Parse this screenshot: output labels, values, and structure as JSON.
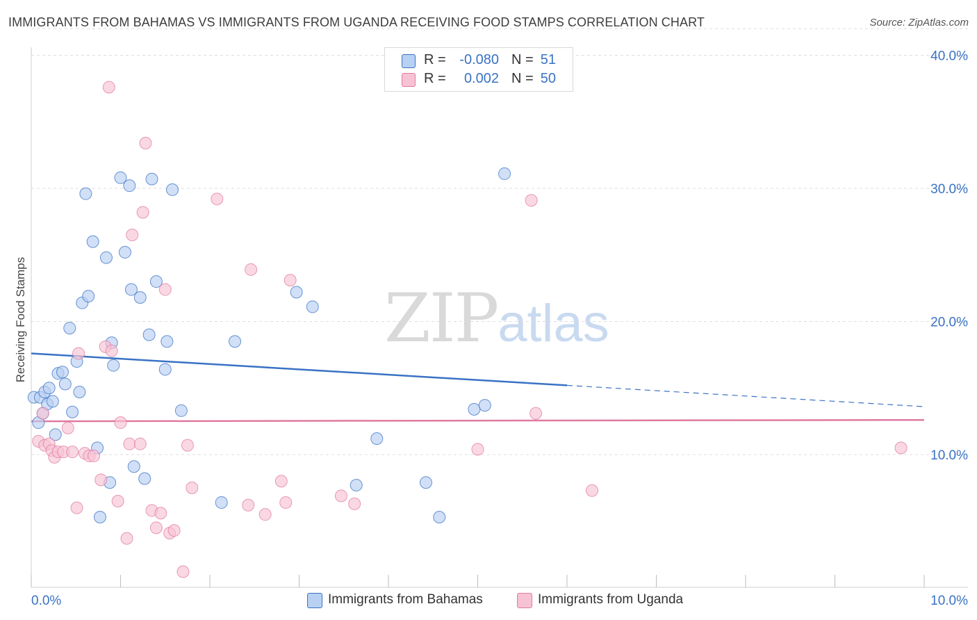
{
  "header": {
    "title": "IMMIGRANTS FROM BAHAMAS VS IMMIGRANTS FROM UGANDA RECEIVING FOOD STAMPS CORRELATION CHART",
    "source": "Source: ZipAtlas.com"
  },
  "legend_top": {
    "rows": [
      {
        "r_label": "R =",
        "r_value": "-0.080",
        "n_label": "N =",
        "n_value": "51"
      },
      {
        "r_label": "R =",
        "r_value": "0.002",
        "n_label": "N =",
        "n_value": "50"
      }
    ]
  },
  "watermark": {
    "zip": "ZIP",
    "atlas": "atlas"
  },
  "chart_data": {
    "type": "scatter",
    "title": "IMMIGRANTS FROM BAHAMAS VS IMMIGRANTS FROM UGANDA RECEIVING FOOD STAMPS CORRELATION CHART",
    "xlabel": "",
    "ylabel": "Receiving Food Stamps",
    "xlim": [
      0,
      10
    ],
    "ylim": [
      0,
      42
    ],
    "x_tick_labels": [
      "0.0%",
      "10.0%"
    ],
    "y_tick_labels": [
      "10.0%",
      "20.0%",
      "30.0%",
      "40.0%"
    ],
    "y_ticks": [
      10,
      20,
      30,
      40
    ],
    "grid": true,
    "legend_position": "bottom",
    "colors": {
      "bahamas": "#3a72c4",
      "uganda": "#e07aa0",
      "bahamas_fill": "#b8d0f2",
      "uganda_fill": "#f7c3d4"
    },
    "series": [
      {
        "name": "Immigrants from Bahamas",
        "trend": {
          "x": [
            0.0,
            6.0
          ],
          "y": [
            17.6,
            15.2
          ],
          "dashed_to": [
            10.0,
            13.6
          ]
        },
        "points": [
          [
            0.03,
            14.3
          ],
          [
            0.08,
            12.4
          ],
          [
            0.1,
            14.3
          ],
          [
            0.13,
            13.1
          ],
          [
            0.15,
            14.7
          ],
          [
            0.18,
            13.8
          ],
          [
            0.2,
            15.0
          ],
          [
            0.24,
            14.0
          ],
          [
            0.27,
            11.5
          ],
          [
            0.3,
            16.1
          ],
          [
            0.35,
            16.2
          ],
          [
            0.38,
            15.3
          ],
          [
            0.43,
            19.5
          ],
          [
            0.46,
            13.2
          ],
          [
            0.51,
            17.0
          ],
          [
            0.54,
            14.7
          ],
          [
            0.57,
            21.4
          ],
          [
            0.61,
            29.6
          ],
          [
            0.64,
            21.9
          ],
          [
            0.69,
            26.0
          ],
          [
            0.74,
            10.5
          ],
          [
            0.77,
            5.3
          ],
          [
            0.84,
            24.8
          ],
          [
            0.88,
            7.9
          ],
          [
            0.9,
            18.4
          ],
          [
            0.92,
            16.7
          ],
          [
            1.0,
            30.8
          ],
          [
            1.05,
            25.2
          ],
          [
            1.1,
            30.2
          ],
          [
            1.12,
            22.4
          ],
          [
            1.15,
            9.1
          ],
          [
            1.22,
            21.8
          ],
          [
            1.27,
            8.2
          ],
          [
            1.32,
            19.0
          ],
          [
            1.35,
            30.7
          ],
          [
            1.4,
            23.0
          ],
          [
            1.5,
            16.4
          ],
          [
            1.52,
            18.5
          ],
          [
            1.58,
            29.9
          ],
          [
            1.68,
            13.3
          ],
          [
            2.13,
            6.4
          ],
          [
            2.28,
            18.5
          ],
          [
            2.97,
            22.2
          ],
          [
            3.15,
            21.1
          ],
          [
            3.64,
            7.7
          ],
          [
            3.87,
            11.2
          ],
          [
            4.42,
            7.9
          ],
          [
            4.57,
            5.3
          ],
          [
            4.96,
            13.4
          ],
          [
            5.08,
            13.7
          ],
          [
            5.3,
            31.1
          ]
        ]
      },
      {
        "name": "Immigrants from Uganda",
        "trend": {
          "x": [
            0.0,
            10.0
          ],
          "y": [
            12.5,
            12.6
          ]
        },
        "points": [
          [
            0.08,
            11.0
          ],
          [
            0.13,
            13.1
          ],
          [
            0.15,
            10.7
          ],
          [
            0.2,
            10.8
          ],
          [
            0.23,
            10.3
          ],
          [
            0.26,
            9.8
          ],
          [
            0.3,
            10.2
          ],
          [
            0.36,
            10.2
          ],
          [
            0.41,
            12.0
          ],
          [
            0.46,
            10.2
          ],
          [
            0.51,
            6.0
          ],
          [
            0.53,
            17.6
          ],
          [
            0.6,
            10.1
          ],
          [
            0.65,
            9.9
          ],
          [
            0.7,
            9.9
          ],
          [
            0.78,
            8.1
          ],
          [
            0.83,
            18.1
          ],
          [
            0.87,
            37.6
          ],
          [
            0.9,
            17.8
          ],
          [
            0.97,
            6.5
          ],
          [
            1.0,
            12.4
          ],
          [
            1.07,
            3.7
          ],
          [
            1.1,
            10.8
          ],
          [
            1.13,
            26.5
          ],
          [
            1.22,
            10.8
          ],
          [
            1.25,
            28.2
          ],
          [
            1.28,
            33.4
          ],
          [
            1.35,
            5.8
          ],
          [
            1.4,
            4.5
          ],
          [
            1.45,
            5.6
          ],
          [
            1.5,
            22.4
          ],
          [
            1.55,
            4.1
          ],
          [
            1.6,
            4.3
          ],
          [
            1.7,
            1.2
          ],
          [
            1.75,
            10.7
          ],
          [
            1.8,
            7.5
          ],
          [
            2.08,
            29.2
          ],
          [
            2.43,
            6.2
          ],
          [
            2.46,
            23.9
          ],
          [
            2.62,
            5.5
          ],
          [
            2.8,
            8.0
          ],
          [
            2.85,
            6.4
          ],
          [
            2.9,
            23.1
          ],
          [
            3.47,
            6.9
          ],
          [
            3.62,
            6.3
          ],
          [
            5.0,
            10.4
          ],
          [
            5.6,
            29.1
          ],
          [
            5.65,
            13.1
          ],
          [
            6.28,
            7.3
          ],
          [
            9.74,
            10.5
          ]
        ]
      }
    ]
  },
  "legend_bottom": {
    "items": [
      {
        "label": "Immigrants from Bahamas"
      },
      {
        "label": "Immigrants from Uganda"
      }
    ]
  }
}
